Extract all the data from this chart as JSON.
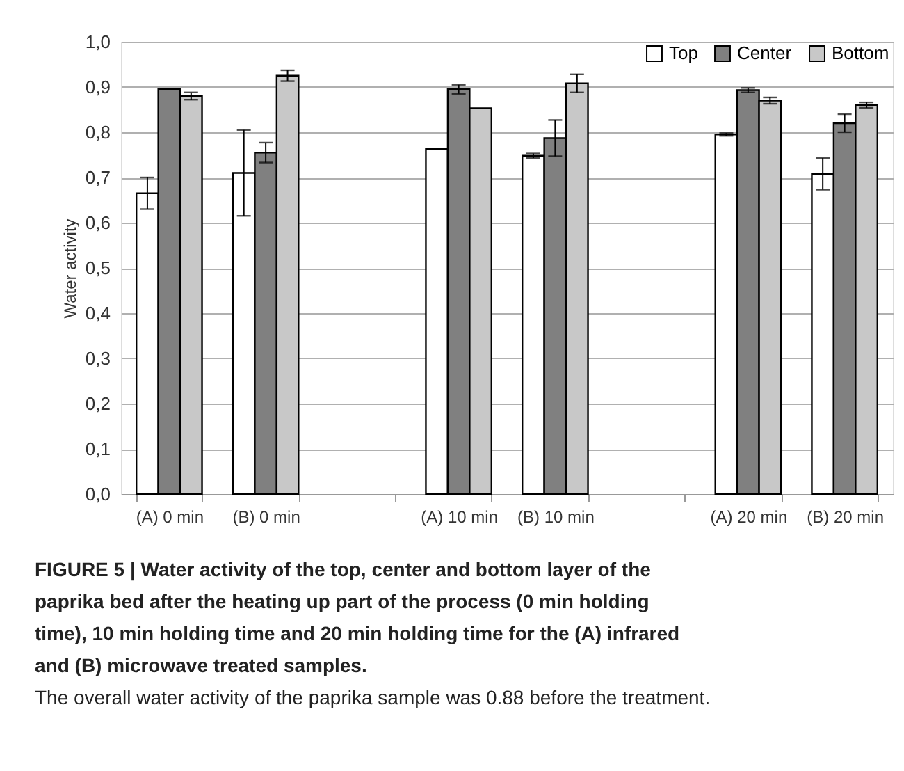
{
  "chart_data": {
    "type": "bar",
    "ylabel": "Water activity",
    "categories": [
      "(A) 0 min",
      "(B) 0 min",
      null,
      "(A) 10 min",
      "(B) 10 min",
      null,
      "(A) 20 min",
      "(B) 20 min"
    ],
    "series": [
      {
        "name": "Top",
        "color": "#ffffff",
        "values": [
          0.665,
          0.71,
          null,
          0.763,
          0.748,
          null,
          0.795,
          0.708
        ],
        "errors": [
          0.035,
          0.095,
          null,
          null,
          0.005,
          null,
          0.003,
          0.035
        ]
      },
      {
        "name": "Center",
        "color": "#808080",
        "values": [
          0.895,
          0.755,
          null,
          0.895,
          0.787,
          null,
          0.893,
          0.82
        ],
        "errors": [
          null,
          0.022,
          null,
          0.01,
          0.04,
          null,
          0.005,
          0.02
        ]
      },
      {
        "name": "Bottom",
        "color": "#c8c8c8",
        "values": [
          0.88,
          0.925,
          null,
          0.853,
          0.908,
          null,
          0.87,
          0.86
        ],
        "errors": [
          0.008,
          0.012,
          null,
          null,
          0.02,
          null,
          0.007,
          0.006
        ]
      }
    ],
    "ylim": [
      0,
      1
    ],
    "yticks": [
      {
        "value": 0,
        "label": "0,0"
      },
      {
        "value": 0.1,
        "label": "0,1"
      },
      {
        "value": 0.2,
        "label": "0,2"
      },
      {
        "value": 0.3,
        "label": "0,3"
      },
      {
        "value": 0.4,
        "label": "0,4"
      },
      {
        "value": 0.5,
        "label": "0,5"
      },
      {
        "value": 0.6,
        "label": "0,6"
      },
      {
        "value": 0.7,
        "label": "0,7"
      },
      {
        "value": 0.8,
        "label": "0,8"
      },
      {
        "value": 0.9,
        "label": "0,9"
      },
      {
        "value": 1,
        "label": "1,0"
      }
    ],
    "grid": "y",
    "legend": "top right",
    "annotations": [
      "FIGURE 5 | Water activity of the top, center and bottom layer of the paprika bed after the heating up part of the process (0 min holding time), 10 min holding time and 20 min holding time for the (A) infrared and (B) microwave treated samples.",
      "The overall water activity of the paprika sample was 0.88 before the treatment."
    ]
  }
}
